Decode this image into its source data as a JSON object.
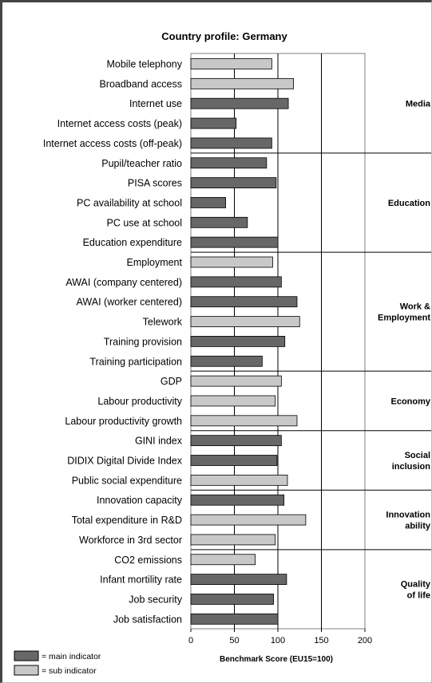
{
  "chart_data": {
    "type": "bar",
    "orientation": "horizontal",
    "title": "Country profile: Germany",
    "xlabel": "Benchmark Score (EU15=100)",
    "xlim": [
      0,
      200
    ],
    "xticks": [
      0,
      50,
      100,
      150,
      200
    ],
    "grid": true,
    "legend": {
      "placement": "bottom-left",
      "entries": [
        {
          "kind": "main",
          "label": "= main indicator",
          "color": "#676767"
        },
        {
          "kind": "sub",
          "label": "= sub indicator",
          "color": "#c8c8c8"
        }
      ]
    },
    "groups": [
      {
        "label": [
          "Media"
        ],
        "categories": [
          {
            "name": "Mobile telephony",
            "value": 93,
            "kind": "sub"
          },
          {
            "name": "Broadband access",
            "value": 118,
            "kind": "sub"
          },
          {
            "name": "Internet use",
            "value": 112,
            "kind": "main"
          },
          {
            "name": "Internet access costs (peak)",
            "value": 52,
            "kind": "main"
          },
          {
            "name": "Internet access costs (off-peak)",
            "value": 93,
            "kind": "main"
          }
        ]
      },
      {
        "label": [
          "Education"
        ],
        "categories": [
          {
            "name": "Pupil/teacher ratio",
            "value": 87,
            "kind": "main"
          },
          {
            "name": "PISA scores",
            "value": 98,
            "kind": "main"
          },
          {
            "name": "PC availability at school",
            "value": 40,
            "kind": "main"
          },
          {
            "name": "PC use at school",
            "value": 65,
            "kind": "main"
          },
          {
            "name": "Education expenditure",
            "value": 100,
            "kind": "main"
          }
        ]
      },
      {
        "label": [
          "Work &",
          "Employment"
        ],
        "categories": [
          {
            "name": "Employment",
            "value": 94,
            "kind": "sub"
          },
          {
            "name": "AWAI (company centered)",
            "value": 104,
            "kind": "main"
          },
          {
            "name": "AWAI (worker centered)",
            "value": 122,
            "kind": "main"
          },
          {
            "name": "Telework",
            "value": 125,
            "kind": "sub"
          },
          {
            "name": "Training provision",
            "value": 108,
            "kind": "main"
          },
          {
            "name": "Training participation",
            "value": 82,
            "kind": "main"
          }
        ]
      },
      {
        "label": [
          "Economy"
        ],
        "categories": [
          {
            "name": "GDP",
            "value": 104,
            "kind": "sub"
          },
          {
            "name": "Labour productivity",
            "value": 97,
            "kind": "sub"
          },
          {
            "name": "Labour productivity growth",
            "value": 122,
            "kind": "sub"
          }
        ]
      },
      {
        "label": [
          "Social",
          "inclusion"
        ],
        "categories": [
          {
            "name": "GINI index",
            "value": 104,
            "kind": "main"
          },
          {
            "name": "DIDIX Digital Divide Index",
            "value": 99,
            "kind": "main"
          },
          {
            "name": "Public social expenditure",
            "value": 111,
            "kind": "sub"
          }
        ]
      },
      {
        "label": [
          "Innovation",
          "ability"
        ],
        "categories": [
          {
            "name": "Innovation capacity",
            "value": 107,
            "kind": "main"
          },
          {
            "name": "Total expenditure in R&D",
            "value": 132,
            "kind": "sub"
          },
          {
            "name": "Workforce in 3rd sector",
            "value": 97,
            "kind": "sub"
          }
        ]
      },
      {
        "label": [
          "Quality",
          "of life"
        ],
        "categories": [
          {
            "name": "CO2 emissions",
            "value": 74,
            "kind": "sub"
          },
          {
            "name": "Infant mortility rate",
            "value": 110,
            "kind": "main"
          },
          {
            "name": "Job security",
            "value": 95,
            "kind": "main"
          },
          {
            "name": "Job satisfaction",
            "value": 100,
            "kind": "main"
          }
        ]
      }
    ]
  }
}
